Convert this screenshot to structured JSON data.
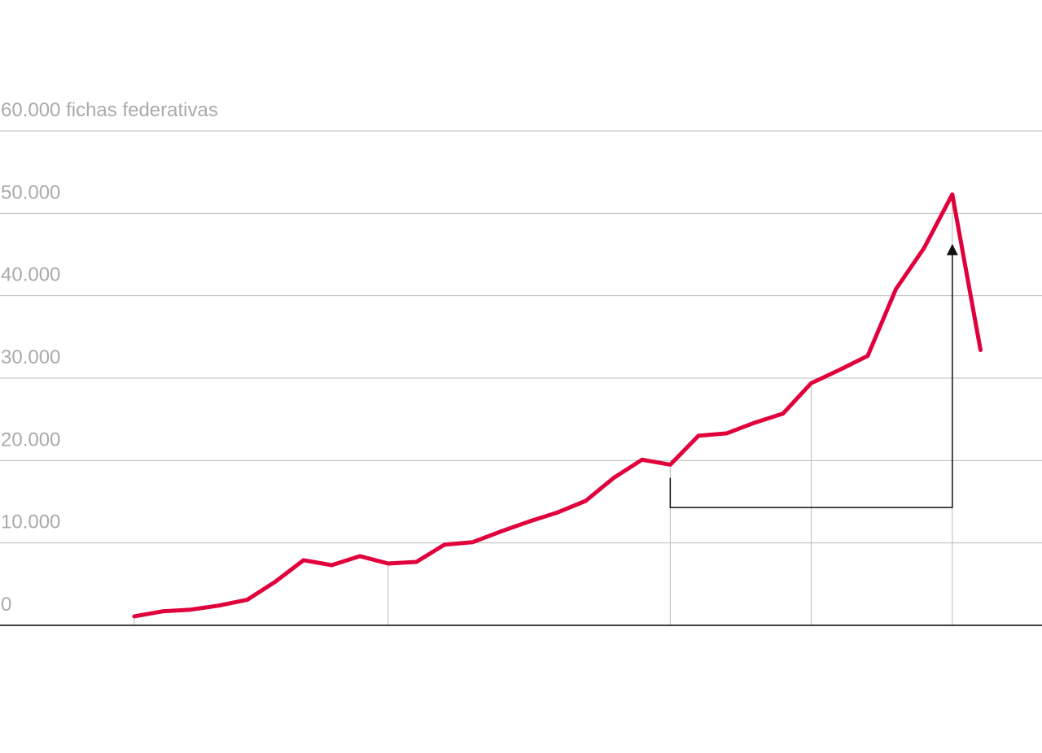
{
  "chart_data": {
    "type": "line",
    "title": "",
    "xlabel": "",
    "ylabel": "",
    "y_unit": "fichas federativas",
    "ylim": [
      0,
      60000
    ],
    "y_ticks": [
      {
        "value": 0,
        "label": "0"
      },
      {
        "value": 10000,
        "label": "10.000"
      },
      {
        "value": 20000,
        "label": "20.000"
      },
      {
        "value": 30000,
        "label": "30.000"
      },
      {
        "value": 40000,
        "label": "40.000"
      },
      {
        "value": 50000,
        "label": "50.000"
      },
      {
        "value": 60000,
        "label": "60.000 fichas federativas"
      }
    ],
    "grid": true,
    "x_markers": [
      9,
      19,
      24,
      29
    ],
    "colors": {
      "series": "#e0003c",
      "grid": "#bbbbbb",
      "axis": "#000000",
      "annotation": "#111111"
    },
    "series": [
      {
        "name": "",
        "x": [
          0,
          1,
          2,
          3,
          4,
          5,
          6,
          7,
          8,
          9,
          10,
          11,
          12,
          13,
          14,
          15,
          16,
          17,
          18,
          19,
          20,
          21,
          22,
          23,
          24,
          25,
          26,
          27,
          28,
          29,
          30
        ],
        "values": [
          1100,
          1700,
          1900,
          2400,
          3100,
          5300,
          7900,
          7300,
          8400,
          7500,
          7700,
          9800,
          10100,
          11400,
          12600,
          13700,
          15100,
          17900,
          20100,
          19500,
          23000,
          23300,
          24600,
          25700,
          29400,
          31000,
          32700,
          40800,
          45800,
          52300,
          33400
        ]
      }
    ],
    "annotations": [
      {
        "type": "bracket-arrow",
        "from_x": 19,
        "to_x": 29,
        "base_y": 14300,
        "start_y": 17900,
        "arrow_y": 46300
      }
    ]
  }
}
